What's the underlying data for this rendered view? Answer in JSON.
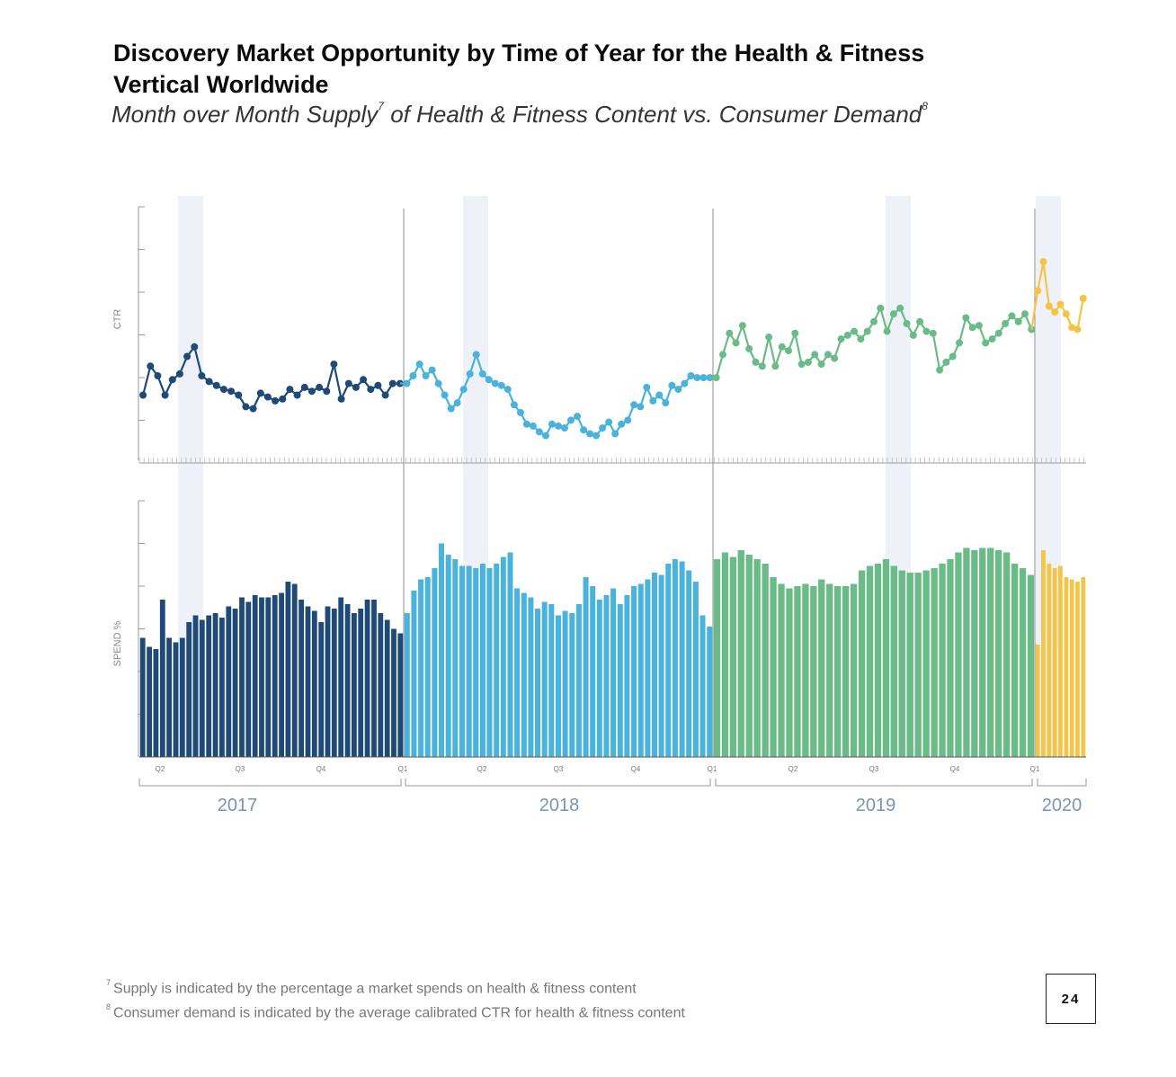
{
  "title": "Discovery Market Opportunity by Time of Year for the Health & Fitness Vertical Worldwide",
  "subtitle_parts": {
    "a": "Month over Month Supply",
    "a_sup": "7",
    "b": " of Health & Fitness Content vs. Consumer Demand",
    "b_sup": "8"
  },
  "footnotes": [
    {
      "mark": "7",
      "text": "Supply is indicated by the percentage a market spends on health & fitness content"
    },
    {
      "mark": "8",
      "text": "Consumer demand is indicated by the average calibrated CTR for health & fitness content"
    }
  ],
  "page_number": "24",
  "colors": {
    "2017": "#1f4a78",
    "2018": "#4ab3dc",
    "2019": "#6abb87",
    "2020": "#f5c445",
    "axis": "#9a9a9a",
    "highlight_band": "#eef1f7",
    "year_label": "#7a93b4"
  },
  "chart_data": [
    {
      "type": "line",
      "ylabel": "CTR",
      "y_ticks_labeled": false,
      "series": [
        {
          "year": "2017",
          "values": [
            30,
            45,
            40,
            30,
            38,
            41,
            50,
            55,
            40,
            37,
            35,
            33,
            32,
            30,
            24,
            23,
            31,
            29,
            27,
            28,
            33,
            30,
            34,
            32,
            34,
            32,
            46,
            28,
            36,
            34,
            38,
            33,
            35,
            30,
            36,
            36
          ]
        },
        {
          "year": "2018",
          "values": [
            36,
            40,
            46,
            40,
            43,
            36,
            30,
            23,
            26,
            33,
            41,
            51,
            41,
            38,
            36,
            35,
            33,
            25,
            21,
            15,
            14,
            11,
            9,
            15,
            14,
            13,
            17,
            19,
            12,
            10,
            9,
            13,
            16,
            10,
            15,
            17,
            25,
            24,
            34,
            27,
            30,
            26,
            35,
            33,
            36,
            40,
            39,
            39,
            39
          ]
        },
        {
          "year": "2019",
          "values": [
            39,
            51,
            62,
            57,
            66,
            54,
            47,
            45,
            60,
            45,
            55,
            53,
            62,
            46,
            47,
            51,
            46,
            51,
            49,
            59,
            61,
            63,
            59,
            63,
            68,
            75,
            63,
            72,
            75,
            67,
            61,
            68,
            63,
            62,
            43,
            47,
            50,
            57,
            70,
            65,
            66,
            57,
            59,
            62,
            67,
            71,
            68,
            72,
            64
          ]
        },
        {
          "year": "2020",
          "values": [
            84,
            99,
            76,
            73,
            77,
            72,
            65,
            64,
            80
          ]
        }
      ]
    },
    {
      "type": "bar",
      "ylabel": "SPEND %",
      "y_ticks_labeled": false,
      "series": [
        {
          "year": "2017",
          "values": [
            53,
            49,
            48,
            70,
            53,
            51,
            53,
            60,
            63,
            61,
            63,
            64,
            62,
            67,
            66,
            71,
            69,
            72,
            71,
            71,
            72,
            73,
            78,
            77,
            70,
            67,
            65,
            60,
            67,
            66,
            71,
            68,
            64,
            66,
            70,
            70,
            64,
            61,
            57,
            55
          ]
        },
        {
          "year": "2018",
          "values": [
            64,
            74,
            79,
            80,
            84,
            95,
            90,
            88,
            85,
            85,
            84,
            86,
            84,
            86,
            89,
            91,
            75,
            73,
            71,
            66,
            69,
            68,
            63,
            65,
            64,
            68,
            80,
            76,
            70,
            72,
            75,
            68,
            72,
            76,
            77,
            79,
            82,
            81,
            86,
            88,
            87,
            83,
            78,
            63,
            58
          ]
        },
        {
          "year": "2019",
          "values": [
            88,
            91,
            89,
            92,
            90,
            88,
            86,
            80,
            77,
            75,
            76,
            77,
            76,
            79,
            77,
            76,
            76,
            77,
            83,
            85,
            86,
            88,
            85,
            83,
            82,
            82,
            83,
            84,
            86,
            88,
            91,
            93,
            92,
            93,
            93,
            92,
            91,
            86,
            84,
            81
          ]
        },
        {
          "year": "2020",
          "values": [
            50,
            92,
            86,
            84,
            85,
            80,
            79,
            78,
            80
          ]
        }
      ]
    }
  ],
  "x_axis": {
    "quarter_labels": [
      "Q2",
      "Q3",
      "Q4",
      "Q1",
      "Q2",
      "Q3",
      "Q4",
      "Q1",
      "Q2",
      "Q3",
      "Q4",
      "Q1"
    ],
    "year_labels": [
      "2017",
      "2018",
      "2019",
      "2020"
    ]
  }
}
